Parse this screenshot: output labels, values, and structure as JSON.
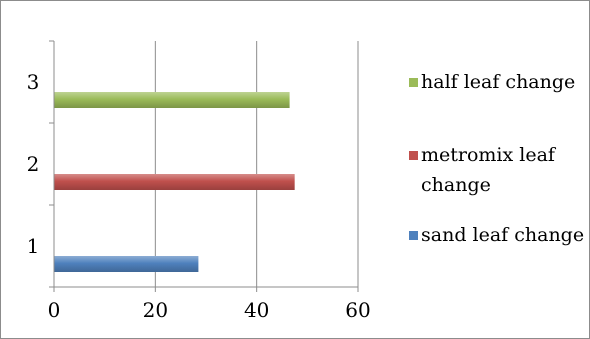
{
  "chart_data": {
    "type": "bar",
    "orientation": "horizontal",
    "categories": [
      "1",
      "2",
      "3"
    ],
    "series": [
      {
        "name": "sand leaf change",
        "color": "#4f81bd",
        "category": "1",
        "value": 28.5
      },
      {
        "name": "metromix leaf change",
        "color": "#c0504d",
        "category": "2",
        "value": 47.5
      },
      {
        "name": "half leaf change",
        "color": "#9bbb59",
        "category": "3",
        "value": 46.5
      }
    ],
    "xlim": [
      0,
      60
    ],
    "x_ticks": [
      0,
      20,
      40,
      60
    ],
    "grid": "vertical",
    "legend_position": "right",
    "legend_order": [
      "half leaf change",
      "metromix leaf change",
      "sand leaf change"
    ],
    "legend_lines": {
      "half leaf change": [
        "half leaf change"
      ],
      "metromix leaf change": [
        "metromix leaf",
        "change"
      ],
      "sand leaf change": [
        "sand leaf change"
      ]
    }
  }
}
